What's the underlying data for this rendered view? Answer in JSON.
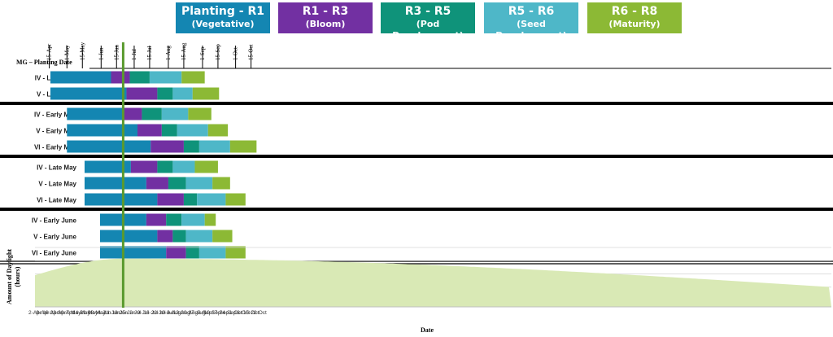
{
  "colors": {
    "vegetative": "#1486b2",
    "bloom": "#7230a2",
    "pod": "#0f937a",
    "seed": "#4eb7c8",
    "maturity": "#8cb935",
    "daylight": "#d9e9b5",
    "marker": "#5a9a2e"
  },
  "legend": [
    {
      "l1": "Planting - R1",
      "l2": "(Vegetative)",
      "color_key": "vegetative"
    },
    {
      "l1": "R1 - R3",
      "l2": "(Bloom)",
      "color_key": "bloom"
    },
    {
      "l1": "R3 - R5",
      "l2": "(Pod Development)",
      "color_key": "pod"
    },
    {
      "l1": "R5 - R6",
      "l2": "(Seed Development)",
      "color_key": "seed"
    },
    {
      "l1": "R6 - R8",
      "l2": "(Maturity)",
      "color_key": "maturity"
    }
  ],
  "chart_data": {
    "type": "gantt-stacked-bar",
    "row_header": "MG – Planting Date",
    "year": 2019,
    "top_axis_ticks": [
      "15-Apr",
      "1-May",
      "15-May",
      "1-Jun",
      "15-Jun",
      "1-Jul",
      "15-Jul",
      "1-Aug",
      "15-Aug",
      "1-Sep",
      "15-Sep",
      "1-Oct",
      "15-Oct"
    ],
    "bottom_axis_ticks": [
      "2-Apr",
      "9-Apr",
      "16-Apr",
      "23-Apr",
      "30-Apr",
      "7-May",
      "14-May",
      "21-May",
      "28-May",
      "4-Jun",
      "11-Jun",
      "18-Jun",
      "25-Jun",
      "2-Jul",
      "9-Jul",
      "16-Jul",
      "23-Jul",
      "30-Jul",
      "6-Aug",
      "13-Aug",
      "20-Aug",
      "27-Aug",
      "3-Sep",
      "10-Sep",
      "17-Sep",
      "24-Sep",
      "1-Oct",
      "8-Oct",
      "15-Oct",
      "22-Oct"
    ],
    "xlabel": "Date",
    "ylabel": "Amount of Daylight (hours)",
    "marker_date": "2019-06-21",
    "phases": [
      "Planting - R1",
      "R1 - R3",
      "R3 - R5",
      "R5 - R6",
      "R6 - R8"
    ],
    "groups": [
      {
        "rows": [
          {
            "label": "IV - Late April",
            "dates": [
              "2019-04-16",
              "2019-06-10",
              "2019-06-27",
              "2019-07-15",
              "2019-08-13",
              "2019-09-03"
            ]
          },
          {
            "label": "V - Late April",
            "dates": [
              "2019-04-16",
              "2019-06-24",
              "2019-07-22",
              "2019-08-05",
              "2019-08-23",
              "2019-09-16"
            ]
          }
        ]
      },
      {
        "rows": [
          {
            "label": "IV - Early May",
            "dates": [
              "2019-05-01",
              "2019-06-20",
              "2019-07-08",
              "2019-07-26",
              "2019-08-19",
              "2019-09-09"
            ]
          },
          {
            "label": "V - Early May",
            "dates": [
              "2019-05-01",
              "2019-07-04",
              "2019-07-26",
              "2019-08-09",
              "2019-09-06",
              "2019-09-24"
            ]
          },
          {
            "label": "VI - Early May",
            "dates": [
              "2019-05-01",
              "2019-07-16",
              "2019-08-15",
              "2019-08-29",
              "2019-09-26",
              "2019-10-20"
            ]
          }
        ]
      },
      {
        "rows": [
          {
            "label": "IV - Late May",
            "dates": [
              "2019-05-17",
              "2019-06-28",
              "2019-07-22",
              "2019-08-05",
              "2019-08-25",
              "2019-09-15"
            ]
          },
          {
            "label": "V - Late May",
            "dates": [
              "2019-05-17",
              "2019-07-12",
              "2019-08-01",
              "2019-08-17",
              "2019-09-10",
              "2019-09-26"
            ]
          },
          {
            "label": "VI - Late May",
            "dates": [
              "2019-05-17",
              "2019-07-22",
              "2019-08-15",
              "2019-08-27",
              "2019-09-22",
              "2019-10-10"
            ]
          }
        ]
      },
      {
        "rows": [
          {
            "label": "IV - Early June",
            "dates": [
              "2019-05-31",
              "2019-07-12",
              "2019-07-30",
              "2019-08-13",
              "2019-09-03",
              "2019-09-13"
            ]
          },
          {
            "label": "V - Early June",
            "dates": [
              "2019-05-31",
              "2019-07-22",
              "2019-08-05",
              "2019-08-17",
              "2019-09-10",
              "2019-09-28"
            ]
          },
          {
            "label": "VI - Early June",
            "dates": [
              "2019-05-31",
              "2019-07-30",
              "2019-08-17",
              "2019-08-29",
              "2019-09-22",
              "2019-10-10"
            ]
          }
        ]
      }
    ],
    "daylight_curve": {
      "start_hours": 12.8,
      "peak_hours": 15.3,
      "peak_date": "2019-06-21",
      "end_hours": 11.0,
      "ylim": [
        8,
        17
      ]
    }
  }
}
